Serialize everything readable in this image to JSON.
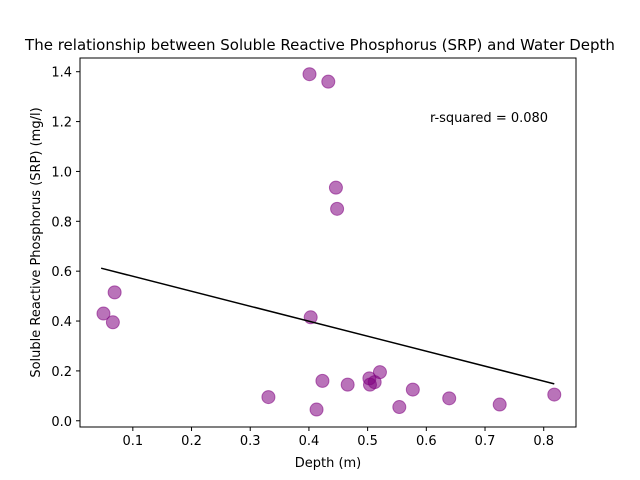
{
  "chart_data": {
    "type": "scatter",
    "title": "The relationship between Soluble Reactive Phosphorus (SRP) and Water Depth",
    "xlabel": "Depth (m)",
    "ylabel": "Soluble Reactive Phosphorus (SRP) (mg/l)",
    "xlim": [
      0.01,
      0.855
    ],
    "ylim": [
      -0.025,
      1.455
    ],
    "xticks": [
      0.1,
      0.2,
      0.3,
      0.4,
      0.5,
      0.6,
      0.7,
      0.8
    ],
    "xtick_labels": [
      "0.1",
      "0.2",
      "0.3",
      "0.4",
      "0.5",
      "0.6",
      "0.7",
      "0.8"
    ],
    "yticks": [
      0.0,
      0.2,
      0.4,
      0.6,
      0.8,
      1.0,
      1.2,
      1.4
    ],
    "ytick_labels": [
      "0.0",
      "0.2",
      "0.4",
      "0.6",
      "0.8",
      "1.0",
      "1.2",
      "1.4"
    ],
    "grid": false,
    "annotation": "r-squared = 0.080",
    "colors": {
      "points": "#800080",
      "fit_line": "#000000"
    },
    "series": [
      {
        "x": [
          0.401,
          0.433,
          0.446,
          0.448,
          0.069,
          0.05,
          0.066,
          0.403,
          0.521,
          0.503,
          0.512,
          0.504,
          0.423,
          0.466,
          0.577,
          0.331,
          0.413,
          0.554,
          0.639,
          0.725,
          0.818
        ],
        "y": [
          1.39,
          1.36,
          0.935,
          0.85,
          0.515,
          0.43,
          0.395,
          0.415,
          0.195,
          0.17,
          0.155,
          0.145,
          0.16,
          0.145,
          0.125,
          0.095,
          0.045,
          0.055,
          0.09,
          0.065,
          0.105
        ]
      }
    ],
    "fit_line": {
      "x": [
        0.046,
        0.818
      ],
      "y": [
        0.612,
        0.148
      ]
    }
  }
}
